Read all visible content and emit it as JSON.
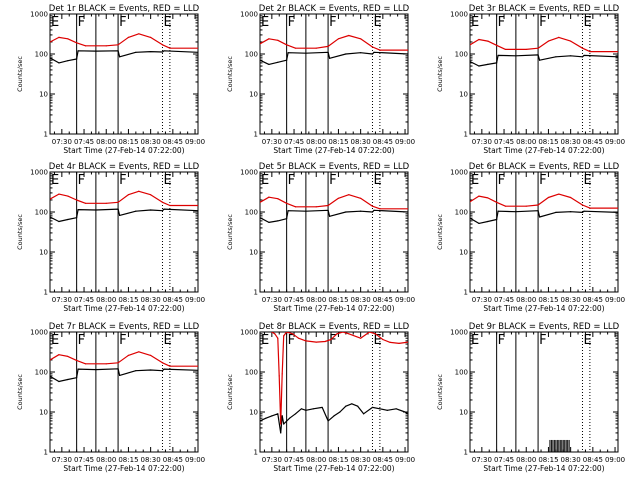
{
  "chart_data": {
    "type": "line",
    "layout": "3x3 grid of panels",
    "y_scale": "log",
    "ylim": [
      1,
      1000
    ],
    "y_ticks": [
      "1",
      "10",
      "100",
      "1000"
    ],
    "x_range": [
      "07:22",
      "09:02"
    ],
    "x_ticks": [
      "07:30",
      "07:45",
      "08:00",
      "08:15",
      "08:30",
      "08:45",
      "09:00"
    ],
    "ylabel": "Counts/sec",
    "xlabel": "Start Time (27-Feb-14 07:22:00)",
    "colors": {
      "events": "#000000",
      "lld": "#dd0000"
    },
    "flag_labels": [
      {
        "letter": "E",
        "time": "07:22"
      },
      {
        "letter": "F",
        "time": "07:40"
      },
      {
        "letter": "F",
        "time": "08:08"
      },
      {
        "letter": "E",
        "time": "08:38"
      }
    ],
    "solid_lines": [
      "07:40",
      "07:53",
      "08:08"
    ],
    "dotted_lines": [
      "07:22",
      "08:38",
      "08:43"
    ],
    "panels": [
      {
        "title": "Det 1r BLACK = Events, RED = LLD",
        "series": [
          {
            "name": "Events",
            "color": "#000000",
            "x": [
              "07:22",
              "07:28",
              "07:34",
              "07:40",
              "07:41",
              "07:53",
              "08:08",
              "08:09",
              "08:20",
              "08:30",
              "08:38",
              "08:39",
              "09:02"
            ],
            "y": [
              80,
              60,
              68,
              75,
              120,
              118,
              120,
              85,
              110,
              115,
              112,
              120,
              110
            ]
          },
          {
            "name": "LLD",
            "color": "#dd0000",
            "x": [
              "07:22",
              "07:28",
              "07:34",
              "07:40",
              "07:46",
              "07:53",
              "08:00",
              "08:08",
              "08:15",
              "08:22",
              "08:30",
              "08:38",
              "08:43",
              "09:02"
            ],
            "y": [
              200,
              260,
              240,
              190,
              160,
              160,
              160,
              170,
              260,
              320,
              260,
              170,
              140,
              140
            ]
          }
        ]
      },
      {
        "title": "Det 2r BLACK = Events, RED = LLD",
        "series": [
          {
            "name": "Events",
            "color": "#000000",
            "x": [
              "07:22",
              "07:28",
              "07:34",
              "07:40",
              "07:41",
              "07:53",
              "08:08",
              "08:09",
              "08:20",
              "08:30",
              "08:38",
              "08:39",
              "09:02"
            ],
            "y": [
              70,
              55,
              62,
              70,
              108,
              105,
              110,
              78,
              100,
              108,
              100,
              110,
              100
            ]
          },
          {
            "name": "LLD",
            "color": "#dd0000",
            "x": [
              "07:22",
              "07:28",
              "07:34",
              "07:40",
              "07:46",
              "07:53",
              "08:00",
              "08:08",
              "08:15",
              "08:22",
              "08:30",
              "08:38",
              "08:43",
              "09:02"
            ],
            "y": [
              180,
              240,
              220,
              170,
              140,
              140,
              140,
              155,
              240,
              290,
              240,
              150,
              125,
              125
            ]
          }
        ]
      },
      {
        "title": "Det 3r BLACK = Events, RED = LLD",
        "series": [
          {
            "name": "Events",
            "color": "#000000",
            "x": [
              "07:22",
              "07:28",
              "07:34",
              "07:40",
              "07:41",
              "07:53",
              "08:08",
              "08:09",
              "08:20",
              "08:30",
              "08:38",
              "08:39",
              "09:02"
            ],
            "y": [
              65,
              50,
              55,
              60,
              92,
              90,
              95,
              70,
              85,
              90,
              85,
              92,
              85
            ]
          },
          {
            "name": "LLD",
            "color": "#dd0000",
            "x": [
              "07:22",
              "07:28",
              "07:34",
              "07:40",
              "07:46",
              "07:53",
              "08:00",
              "08:08",
              "08:15",
              "08:22",
              "08:30",
              "08:38",
              "08:43",
              "09:02"
            ],
            "y": [
              170,
              230,
              210,
              165,
              130,
              130,
              130,
              140,
              210,
              260,
              210,
              140,
              115,
              115
            ]
          }
        ]
      },
      {
        "title": "Det 4r BLACK = Events, RED = LLD",
        "series": [
          {
            "name": "Events",
            "color": "#000000",
            "x": [
              "07:22",
              "07:28",
              "07:34",
              "07:40",
              "07:41",
              "07:53",
              "08:08",
              "08:09",
              "08:20",
              "08:30",
              "08:38",
              "08:39",
              "09:02"
            ],
            "y": [
              75,
              58,
              65,
              72,
              115,
              112,
              118,
              82,
              105,
              112,
              108,
              118,
              108
            ]
          },
          {
            "name": "LLD",
            "color": "#dd0000",
            "x": [
              "07:22",
              "07:28",
              "07:34",
              "07:40",
              "07:46",
              "07:53",
              "08:00",
              "08:08",
              "08:15",
              "08:22",
              "08:30",
              "08:38",
              "08:43",
              "09:02"
            ],
            "y": [
              210,
              280,
              250,
              200,
              165,
              165,
              165,
              175,
              270,
              330,
              270,
              175,
              145,
              145
            ]
          }
        ]
      },
      {
        "title": "Det 5r BLACK = Events, RED = LLD",
        "series": [
          {
            "name": "Events",
            "color": "#000000",
            "x": [
              "07:22",
              "07:28",
              "07:34",
              "07:40",
              "07:41",
              "07:53",
              "08:08",
              "08:09",
              "08:20",
              "08:30",
              "08:38",
              "08:39",
              "09:02"
            ],
            "y": [
              72,
              55,
              60,
              68,
              108,
              105,
              110,
              78,
              100,
              105,
              100,
              110,
              100
            ]
          },
          {
            "name": "LLD",
            "color": "#dd0000",
            "x": [
              "07:22",
              "07:28",
              "07:34",
              "07:40",
              "07:46",
              "07:53",
              "08:00",
              "08:08",
              "08:15",
              "08:22",
              "08:30",
              "08:38",
              "08:43",
              "09:02"
            ],
            "y": [
              175,
              235,
              215,
              165,
              135,
              135,
              135,
              145,
              220,
              270,
              220,
              140,
              120,
              120
            ]
          }
        ]
      },
      {
        "title": "Det 6r BLACK = Events, RED = LLD",
        "series": [
          {
            "name": "Events",
            "color": "#000000",
            "x": [
              "07:22",
              "07:28",
              "07:34",
              "07:40",
              "07:41",
              "07:53",
              "08:08",
              "08:09",
              "08:20",
              "08:30",
              "08:38",
              "08:39",
              "09:02"
            ],
            "y": [
              70,
              52,
              58,
              65,
              105,
              102,
              108,
              75,
              98,
              102,
              98,
              105,
              98
            ]
          },
          {
            "name": "LLD",
            "color": "#dd0000",
            "x": [
              "07:22",
              "07:28",
              "07:34",
              "07:40",
              "07:46",
              "07:53",
              "08:00",
              "08:08",
              "08:15",
              "08:22",
              "08:30",
              "08:38",
              "08:43",
              "09:02"
            ],
            "y": [
              180,
              250,
              225,
              175,
              140,
              140,
              140,
              150,
              230,
              280,
              230,
              150,
              125,
              125
            ]
          }
        ]
      },
      {
        "title": "Det 7r BLACK = Events, RED = LLD",
        "series": [
          {
            "name": "Events",
            "color": "#000000",
            "x": [
              "07:22",
              "07:28",
              "07:34",
              "07:40",
              "07:41",
              "07:53",
              "08:08",
              "08:09",
              "08:20",
              "08:30",
              "08:38",
              "08:39",
              "09:02"
            ],
            "y": [
              78,
              58,
              65,
              72,
              118,
              115,
              120,
              82,
              108,
              112,
              108,
              118,
              110
            ]
          },
          {
            "name": "LLD",
            "color": "#dd0000",
            "x": [
              "07:22",
              "07:28",
              "07:34",
              "07:40",
              "07:46",
              "07:53",
              "08:00",
              "08:08",
              "08:15",
              "08:22",
              "08:30",
              "08:38",
              "08:43",
              "09:02"
            ],
            "y": [
              200,
              270,
              245,
              195,
              160,
              160,
              160,
              170,
              260,
              320,
              260,
              170,
              140,
              140
            ]
          }
        ]
      },
      {
        "title": "Det 8r BLACK = Events, RED = LLD",
        "series": [
          {
            "name": "Events",
            "color": "#000000",
            "x": [
              "07:22",
              "07:26",
              "07:30",
              "07:34",
              "07:36",
              "07:37",
              "07:38",
              "07:42",
              "07:46",
              "07:50",
              "07:53",
              "07:58",
              "08:04",
              "08:08",
              "08:12",
              "08:16",
              "08:20",
              "08:24",
              "08:28",
              "08:32",
              "08:38",
              "08:43",
              "08:48",
              "08:54",
              "09:00",
              "09:02"
            ],
            "y": [
              6,
              7,
              8,
              9,
              3,
              8,
              5,
              7,
              9,
              12,
              11,
              12,
              13,
              6,
              8,
              10,
              14,
              16,
              14,
              9,
              13,
              12,
              11,
              12,
              10,
              9
            ]
          },
          {
            "name": "LLD",
            "color": "#dd0000",
            "x": [
              "07:30",
              "07:32",
              "07:34",
              "07:35",
              "07:36",
              "07:37",
              "07:38",
              "07:40",
              "07:44",
              "07:48",
              "07:53",
              "08:00",
              "08:06",
              "08:10",
              "08:14",
              "08:18",
              "08:22",
              "08:30",
              "08:36",
              "08:40",
              "08:45",
              "08:50",
              "08:56",
              "09:02"
            ],
            "y": [
              1000,
              900,
              700,
              80,
              5,
              90,
              800,
              1000,
              900,
              700,
              600,
              560,
              580,
              650,
              900,
              1000,
              900,
              700,
              1000,
              900,
              650,
              550,
              520,
              560
            ]
          }
        ]
      },
      {
        "title": "Det 9r BLACK = Events, RED = LLD",
        "series": [
          {
            "name": "Events",
            "color": "#000000",
            "bursts": {
              "x": [
                "08:16",
                "08:17",
                "08:18",
                "08:19",
                "08:20",
                "08:21",
                "08:22",
                "08:23",
                "08:24",
                "08:25",
                "08:26",
                "08:27",
                "08:28",
                "08:29"
              ],
              "y": [
                2,
                2,
                2,
                2,
                2,
                2,
                2,
                2,
                2,
                2,
                2,
                2,
                2,
                2
              ]
            }
          }
        ]
      }
    ]
  }
}
